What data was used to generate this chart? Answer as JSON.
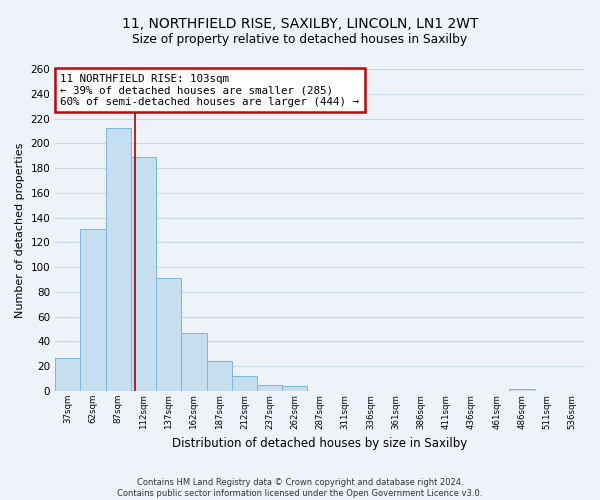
{
  "title": "11, NORTHFIELD RISE, SAXILBY, LINCOLN, LN1 2WT",
  "subtitle": "Size of property relative to detached houses in Saxilby",
  "xlabel": "Distribution of detached houses by size in Saxilby",
  "ylabel": "Number of detached properties",
  "bar_values": [
    27,
    131,
    212,
    189,
    91,
    47,
    24,
    12,
    5,
    4,
    0,
    0,
    0,
    0,
    0,
    0,
    0,
    0,
    2,
    0,
    0
  ],
  "bar_labels": [
    "37sqm",
    "62sqm",
    "87sqm",
    "112sqm",
    "137sqm",
    "162sqm",
    "187sqm",
    "212sqm",
    "237sqm",
    "262sqm",
    "287sqm",
    "311sqm",
    "336sqm",
    "361sqm",
    "386sqm",
    "411sqm",
    "436sqm",
    "461sqm",
    "486sqm",
    "511sqm",
    "536sqm"
  ],
  "bar_color": "#c5dff0",
  "bar_edge_color": "#7db5d8",
  "vline_x": 2.65,
  "vline_color": "#aa0000",
  "annotation_line1": "11 NORTHFIELD RISE: 103sqm",
  "annotation_line2": "← 39% of detached houses are smaller (285)",
  "annotation_line3": "60% of semi-detached houses are larger (444) →",
  "annotation_box_color": "#ffffff",
  "annotation_box_edge": "#cc0000",
  "ylim": [
    0,
    260
  ],
  "yticks": [
    0,
    20,
    40,
    60,
    80,
    100,
    120,
    140,
    160,
    180,
    200,
    220,
    240,
    260
  ],
  "grid_color": "#c8d8e8",
  "background_color": "#eef3fa",
  "footer_text": "Contains HM Land Registry data © Crown copyright and database right 2024.\nContains public sector information licensed under the Open Government Licence v3.0."
}
